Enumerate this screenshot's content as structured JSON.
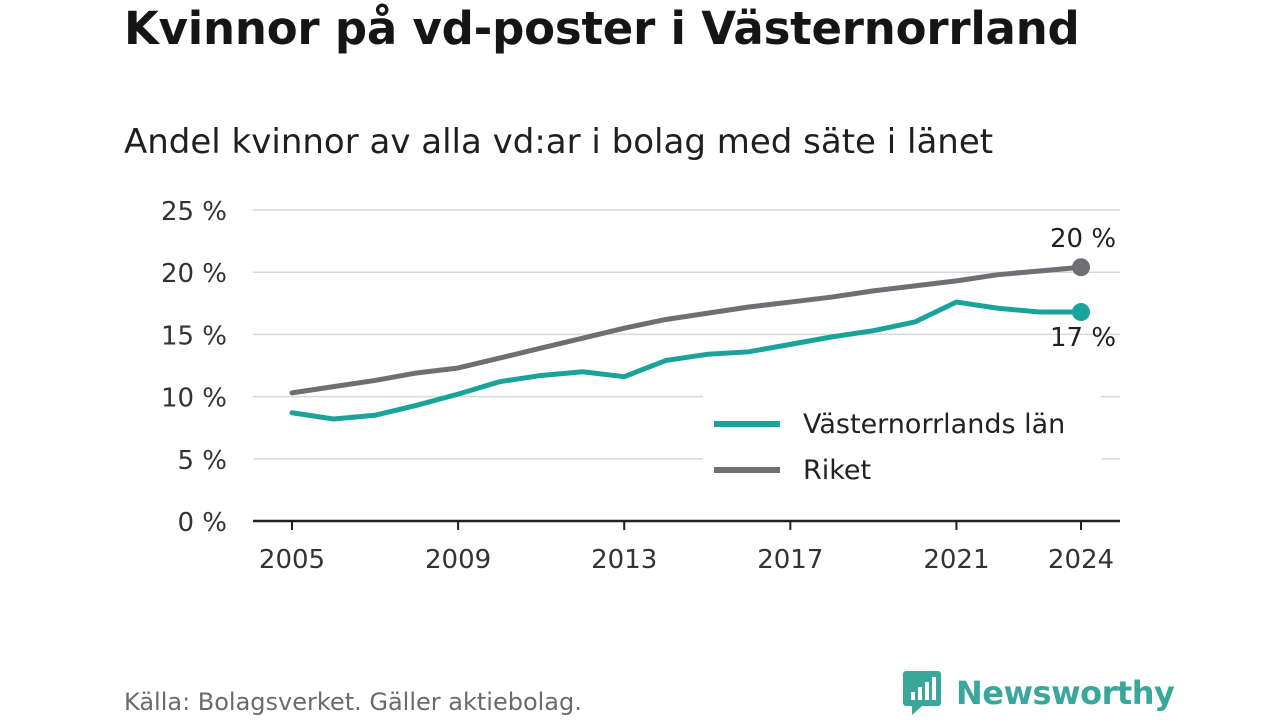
{
  "chart_data": {
    "type": "line",
    "title": "Kvinnor på vd-poster i Västernorrland",
    "subtitle": "Andel kvinnor av alla vd:ar i bolag med säte i länet",
    "x": [
      2005,
      2006,
      2007,
      2008,
      2009,
      2010,
      2011,
      2012,
      2013,
      2014,
      2015,
      2016,
      2017,
      2018,
      2019,
      2020,
      2021,
      2022,
      2023,
      2024
    ],
    "x_ticks": [
      "2005",
      "2009",
      "2013",
      "2017",
      "2021",
      "2024"
    ],
    "y_ticks": [
      "0 %",
      "5 %",
      "10 %",
      "15 %",
      "20 %",
      "25 %"
    ],
    "ylim": [
      0,
      25
    ],
    "xlabel": "",
    "ylabel": "",
    "grid": true,
    "legend_position": "bottom-right",
    "series": [
      {
        "name": "Västernorrlands län",
        "color": "#1aa39a",
        "values": [
          8.7,
          8.2,
          8.5,
          9.3,
          10.2,
          11.2,
          11.7,
          12.0,
          11.6,
          12.9,
          13.4,
          13.6,
          14.2,
          14.8,
          15.3,
          16.0,
          17.6,
          17.1,
          16.8,
          16.8
        ],
        "end_label": "17 %"
      },
      {
        "name": "Riket",
        "color": "#6f6f73",
        "values": [
          10.3,
          10.8,
          11.3,
          11.9,
          12.3,
          13.1,
          13.9,
          14.7,
          15.5,
          16.2,
          16.7,
          17.2,
          17.6,
          18.0,
          18.5,
          18.9,
          19.3,
          19.8,
          20.1,
          20.4
        ],
        "end_label": "20 %"
      }
    ]
  },
  "footer": {
    "source": "Källa: Bolagsverket. Gäller aktiebolag.",
    "brand": "Newsworthy",
    "brand_icon": "newsworthy-logo-icon",
    "brand_color": "#3aa79c"
  }
}
